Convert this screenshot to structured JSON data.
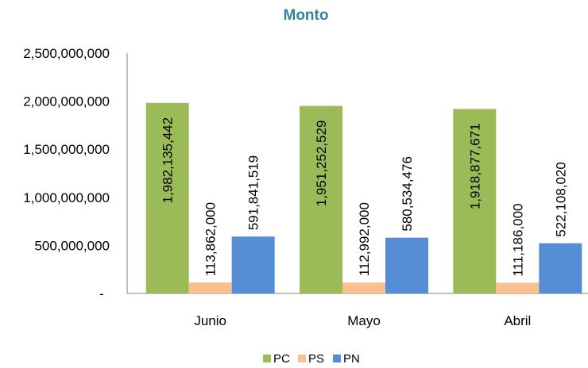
{
  "chart_data": {
    "type": "bar",
    "title": "Monto",
    "title_color": "#31849B",
    "categories": [
      "Junio",
      "Mayo",
      "Abril"
    ],
    "series": [
      {
        "name": "PC",
        "color": "#9BBB59",
        "values": [
          1982135442,
          1951252529,
          1918877671
        ],
        "labels": [
          "1,982,135,442",
          "1,951,252,529",
          "1,918,877,671"
        ]
      },
      {
        "name": "PS",
        "color": "#FAC090",
        "values": [
          113862000,
          112992000,
          111186000
        ],
        "labels": [
          "113,862,000",
          "112,992,000",
          "111,186,000"
        ]
      },
      {
        "name": "PN",
        "color": "#558ED5",
        "values": [
          591841519,
          580534476,
          522108020
        ],
        "labels": [
          "591,841,519",
          "580,534,476",
          "522,108,020"
        ]
      }
    ],
    "ylim": [
      0,
      2500000000
    ],
    "y_ticks": [
      0,
      500000000,
      1000000000,
      1500000000,
      2000000000,
      2500000000
    ],
    "y_tick_labels": [
      "-",
      "500,000,000",
      "1,000,000,000",
      "1,500,000,000",
      "2,000,000,000",
      "2,500,000,000"
    ],
    "xlabel": "",
    "ylabel": "",
    "grid": false,
    "legend_position": "bottom"
  }
}
